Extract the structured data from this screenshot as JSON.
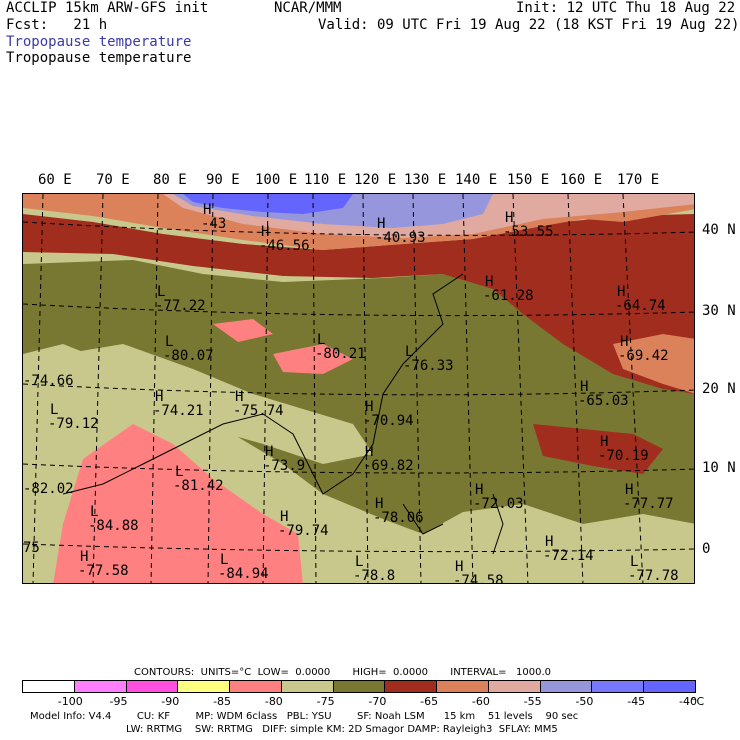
{
  "header": {
    "left1": "ACCLIP 15km ARW-GFS init",
    "left2": "Fcst:   21 h",
    "center": "NCAR/MMM",
    "right1": "Init: 12 UTC Thu 18 Aug 22",
    "right2": "Valid: 09 UTC Fri 19 Aug 22 (18 KST Fri 19 Aug 22)",
    "field1": "Tropopause temperature",
    "field2": "Tropopause temperature"
  },
  "lon_labels": [
    "60 E",
    "70 E",
    "80 E",
    "90 E",
    "100 E",
    "110 E",
    "120 E",
    "130 E",
    "140 E",
    "150 E",
    "160 E",
    "170 E"
  ],
  "lat_labels": [
    "40 N",
    "30 N",
    "20 N",
    "10 N",
    "0"
  ],
  "map_labels": [
    {
      "h": "H",
      "v": "-43"
    },
    {
      "h": "H",
      "v": "-46.56"
    },
    {
      "h": "H",
      "v": "-40.93"
    },
    {
      "h": "H",
      "v": "-53.55"
    },
    {
      "h": "L",
      "v": "-77.22"
    },
    {
      "h": "L",
      "v": "-80.07"
    },
    {
      "h": "L",
      "v": "-80.21"
    },
    {
      "h": "L",
      "v": "-76.33"
    },
    {
      "h": "H",
      "v": "-61.28"
    },
    {
      "h": "H",
      "v": "-64.74"
    },
    {
      "h": "H",
      "v": "-69.42"
    },
    {
      "h": "H",
      "v": "-65.03"
    },
    {
      "h": "",
      "v": "-74.66"
    },
    {
      "h": "H",
      "v": "-74.21"
    },
    {
      "h": "H",
      "v": "-75.74"
    },
    {
      "h": "L",
      "v": "-79.12"
    },
    {
      "h": "H",
      "v": "-70.94"
    },
    {
      "h": "H",
      "v": "-73.9"
    },
    {
      "h": "H",
      "v": "-69.82"
    },
    {
      "h": "H",
      "v": "-70.19"
    },
    {
      "h": "",
      "v": "-82.02"
    },
    {
      "h": "L",
      "v": "-81.42"
    },
    {
      "h": "H",
      "v": "-72.03"
    },
    {
      "h": "H",
      "v": "-77.77"
    },
    {
      "h": "L",
      "v": "-84.88"
    },
    {
      "h": "H",
      "v": "-79.74"
    },
    {
      "h": "H",
      "v": "-78.06"
    },
    {
      "h": "",
      "v": "75"
    },
    {
      "h": "H",
      "v": "-77.58"
    },
    {
      "h": "L",
      "v": "-84.94"
    },
    {
      "h": "L",
      "v": "-78.8"
    },
    {
      "h": "H",
      "v": "-74.58"
    },
    {
      "h": "H",
      "v": "-72.14"
    },
    {
      "h": "L",
      "v": "-77.78"
    }
  ],
  "contours": {
    "line": "CONTOURS:  UNITS=°C  LOW=  0.0000       HIGH=  0.0000       INTERVAL=   1000.0"
  },
  "colorbar": {
    "colors": [
      "#ffffff",
      "#ff80ff",
      "#ff50e0",
      "#ffff80",
      "#ff8080",
      "#c8c88c",
      "#787832",
      "#a02d1e",
      "#dc825a",
      "#e0aaa0",
      "#9696dc",
      "#7878ff",
      "#6464ff"
    ],
    "ticks": [
      "-100",
      "-95",
      "-90",
      "-85",
      "-80",
      "-75",
      "-70",
      "-65",
      "-60",
      "-55",
      "-50",
      "-45",
      "-40"
    ],
    "unit": "°C"
  },
  "model_info": {
    "line1": "Model Info: V4.4        CU: KF        MP: WDM 6class   PBL: YSU        SF: Noah LSM      15 km    51 levels    90 sec",
    "line2": "LW: RRTMG    SW: RRTMG   DIFF: simple KM: 2D Smagor DAMP: Rayleigh3  SFLAY: MM5"
  }
}
